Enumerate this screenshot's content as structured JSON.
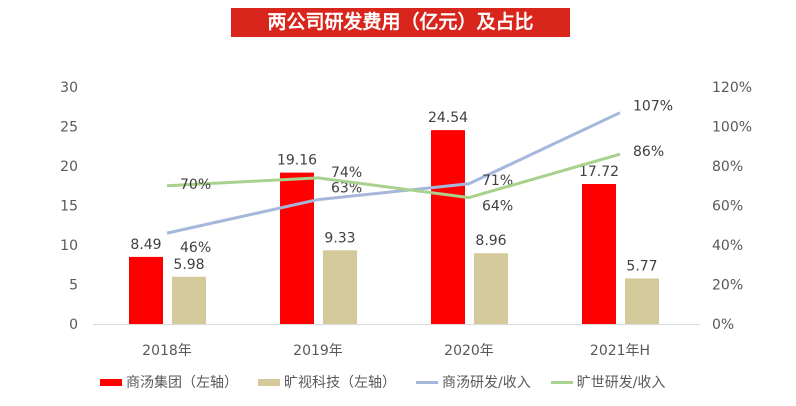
{
  "chart_data": {
    "type": "bar+line",
    "title": "两公司研发费用（亿元）及占比",
    "categories": [
      "2018年",
      "2019年",
      "2020年",
      "2021年H"
    ],
    "series": [
      {
        "name": "商汤集团（左轴）",
        "type": "bar",
        "axis": "left",
        "color": "#FF0000",
        "values": [
          8.49,
          19.16,
          24.54,
          17.72
        ],
        "labels": [
          "8.49",
          "19.16",
          "24.54",
          "17.72"
        ]
      },
      {
        "name": "旷视科技（左轴）",
        "type": "bar",
        "axis": "left",
        "color": "#D4C99A",
        "values": [
          5.98,
          9.33,
          8.96,
          5.77
        ],
        "labels": [
          "5.98",
          "9.33",
          "8.96",
          "5.77"
        ]
      },
      {
        "name": "商汤研发/收入",
        "type": "line",
        "axis": "right",
        "color": "#A5B8DC",
        "values": [
          46,
          63,
          71,
          107
        ],
        "labels": [
          "46%",
          "63%",
          "71%",
          "107%"
        ]
      },
      {
        "name": "旷世研发/收入",
        "type": "line",
        "axis": "right",
        "color": "#A9D18E",
        "values": [
          70,
          74,
          64,
          86
        ],
        "labels": [
          "70%",
          "74%",
          "64%",
          "86%"
        ]
      }
    ],
    "left_axis": {
      "ylim": [
        0,
        30
      ],
      "ticks": [
        "0",
        "5",
        "10",
        "15",
        "20",
        "25",
        "30"
      ]
    },
    "right_axis": {
      "ylim": [
        0,
        120
      ],
      "ticks": [
        "0%",
        "20%",
        "40%",
        "60%",
        "80%",
        "100%",
        "120%"
      ]
    },
    "grid": false,
    "legend_position": "bottom"
  }
}
